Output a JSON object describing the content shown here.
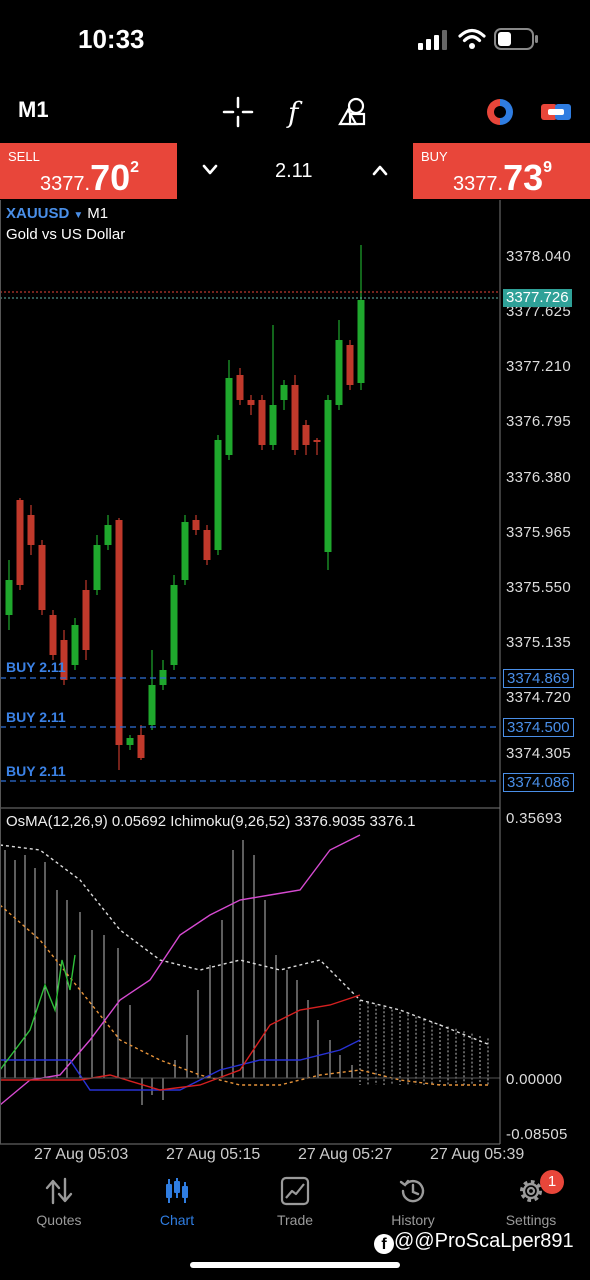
{
  "status_bar": {
    "time": "10:33"
  },
  "toolbar": {
    "timeframe": "M1",
    "icons": [
      "crosshair-icon",
      "indicators-icon",
      "objects-icon",
      "one-click-trading-icon",
      "trade-levels-icon"
    ]
  },
  "trade_bar": {
    "sell_label": "SELL",
    "sell_price_prefix": "3377.",
    "sell_price_big": "70",
    "sell_price_sup": "2",
    "lot": "2.11",
    "buy_label": "BUY",
    "buy_price_prefix": "3377.",
    "buy_price_big": "73",
    "buy_price_sup": "9",
    "sell_color": "#e8463a",
    "buy_color": "#e8463a"
  },
  "chart": {
    "symbol": "XAUUSD",
    "symbol_timeframe": "M1",
    "description": "Gold vs US Dollar",
    "price_axis": [
      "3378.040",
      "3377.625",
      "3377.210",
      "3376.795",
      "3376.380",
      "3375.965",
      "3375.550",
      "3375.135",
      "3374.720",
      "3374.305"
    ],
    "current_price_tag": "3377.726",
    "buy_lines": [
      {
        "label": "BUY 2.11",
        "price": "3374.869"
      },
      {
        "label": "BUY 2.11",
        "price": "3374.500"
      },
      {
        "label": "BUY 2.11",
        "price": "3374.086"
      }
    ],
    "bull_color": "#1fa82d",
    "bear_color": "#c0392b"
  },
  "indicator": {
    "header": "OsMA(12,26,9) 0.05692 Ichimoku(9,26,52) 3376.9035 3376.1",
    "axis": [
      "0.35693",
      "0.00000",
      "-0.08505"
    ]
  },
  "time_axis": [
    "27 Aug 05:03",
    "27 Aug 05:15",
    "27 Aug 05:27",
    "27 Aug 05:39"
  ],
  "bottom_nav": {
    "items": [
      {
        "label": "Quotes",
        "icon": "quotes-icon"
      },
      {
        "label": "Chart",
        "icon": "chart-icon"
      },
      {
        "label": "Trade",
        "icon": "trade-icon"
      },
      {
        "label": "History",
        "icon": "history-icon"
      },
      {
        "label": "Settings",
        "icon": "settings-icon"
      }
    ],
    "settings_badge": "1",
    "active_color": "#2f7de1"
  },
  "watermark": "@@ProScaLper891"
}
